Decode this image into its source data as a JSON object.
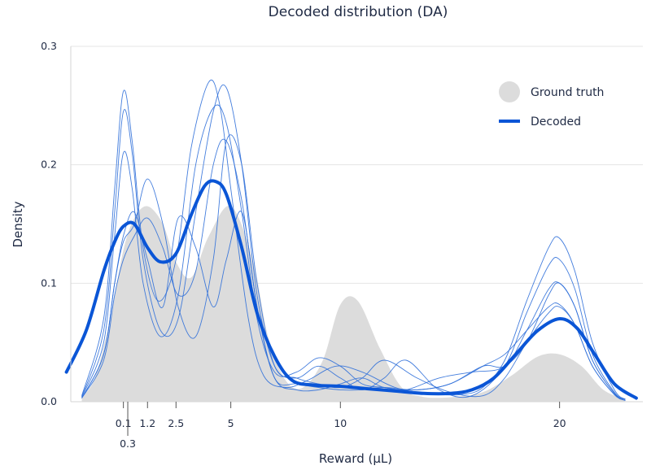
{
  "chart_data": {
    "type": "area",
    "title": "Decoded distribution (DA)",
    "xlabel": "Reward (μL)",
    "ylabel": "Density",
    "ylim": [
      0,
      0.3
    ],
    "yticks": [
      "0.0",
      "0.1",
      "0.2",
      "0.3"
    ],
    "xticks": [
      "0.1",
      "0.3",
      "1.2",
      "2.5",
      "5",
      "10",
      "20"
    ],
    "grid": "horizontal",
    "legend": {
      "position": "top-right",
      "entries": [
        "Ground truth",
        "Decoded"
      ]
    },
    "colors": {
      "ground_truth": "#dcdcdc",
      "decoded": "#0a55d6",
      "samples": "#2f6fd9"
    },
    "series": [
      {
        "name": "Ground truth",
        "x": [
          -1.8,
          -1.2,
          -0.5,
          0.1,
          0.6,
          1.2,
          1.9,
          2.5,
          3.2,
          4.0,
          5.0,
          6.0,
          6.7,
          7.5,
          8.3,
          9.2,
          10.0,
          10.8,
          11.8,
          12.8,
          13.8,
          15.2,
          16.5,
          17.8,
          19.0,
          20.0,
          21.0,
          22.0,
          23.0
        ],
        "values": [
          0.004,
          0.02,
          0.07,
          0.128,
          0.155,
          0.165,
          0.15,
          0.118,
          0.105,
          0.14,
          0.165,
          0.12,
          0.055,
          0.018,
          0.012,
          0.035,
          0.082,
          0.085,
          0.045,
          0.012,
          0.004,
          0.004,
          0.008,
          0.022,
          0.038,
          0.04,
          0.03,
          0.01,
          0.002
        ]
      },
      {
        "name": "Decoded",
        "x": [
          -2.5,
          -1.6,
          -0.8,
          -0.3,
          0.1,
          0.6,
          1.2,
          1.8,
          2.5,
          3.2,
          3.8,
          4.3,
          4.8,
          5.5,
          6.2,
          7.0,
          7.8,
          8.8,
          10.0,
          11.2,
          12.5,
          13.8,
          15.0,
          16.0,
          17.0,
          18.0,
          19.0,
          20.0,
          20.8,
          21.6,
          22.5,
          23.5
        ],
        "values": [
          0.025,
          0.06,
          0.11,
          0.135,
          0.148,
          0.15,
          0.13,
          0.118,
          0.125,
          0.158,
          0.182,
          0.186,
          0.175,
          0.13,
          0.075,
          0.038,
          0.018,
          0.014,
          0.013,
          0.011,
          0.009,
          0.007,
          0.007,
          0.01,
          0.02,
          0.04,
          0.06,
          0.07,
          0.062,
          0.04,
          0.015,
          0.003
        ]
      }
    ],
    "samples": [
      {
        "x": [
          -1.8,
          -0.8,
          -0.3,
          0.1,
          0.5,
          1.0,
          1.7,
          2.5,
          3.2,
          4.0,
          4.5,
          5.0,
          5.8,
          6.5,
          7.5,
          8.5,
          9.8,
          11.0,
          12.5,
          14.0,
          15.5,
          16.5,
          17.5,
          18.5,
          19.5,
          20.0,
          20.7,
          21.5,
          22.5,
          23.0
        ],
        "y": [
          0.005,
          0.07,
          0.18,
          0.262,
          0.22,
          0.13,
          0.085,
          0.12,
          0.215,
          0.27,
          0.25,
          0.18,
          0.07,
          0.022,
          0.012,
          0.018,
          0.03,
          0.025,
          0.012,
          0.007,
          0.006,
          0.012,
          0.035,
          0.085,
          0.13,
          0.138,
          0.11,
          0.05,
          0.01,
          0.002
        ]
      },
      {
        "x": [
          -1.8,
          -0.8,
          -0.3,
          0.1,
          0.5,
          1.0,
          1.8,
          2.6,
          3.4,
          4.2,
          4.8,
          5.5,
          6.2,
          7.0,
          8.0,
          9.0,
          10.0,
          11.0,
          12.0,
          13.0,
          14.5,
          16.0,
          17.5,
          18.5,
          19.5,
          20.0,
          20.7,
          21.5,
          22.5,
          23.0
        ],
        "y": [
          0.004,
          0.06,
          0.16,
          0.245,
          0.21,
          0.12,
          0.06,
          0.07,
          0.16,
          0.245,
          0.265,
          0.2,
          0.09,
          0.03,
          0.02,
          0.03,
          0.02,
          0.01,
          0.02,
          0.035,
          0.01,
          0.005,
          0.03,
          0.075,
          0.115,
          0.12,
          0.095,
          0.04,
          0.008,
          0.002
        ]
      },
      {
        "x": [
          -1.8,
          -0.8,
          -0.3,
          0.1,
          0.5,
          1.0,
          1.8,
          2.6,
          3.4,
          4.2,
          4.8,
          5.5,
          6.2,
          7.0,
          8.0,
          9.0,
          10.0,
          11.0,
          12.0,
          13.0,
          14.5,
          16.0,
          17.5,
          18.5,
          19.5,
          20.0,
          20.7,
          21.5,
          22.5,
          23.0
        ],
        "y": [
          0.004,
          0.05,
          0.14,
          0.21,
          0.18,
          0.1,
          0.055,
          0.09,
          0.2,
          0.248,
          0.235,
          0.16,
          0.07,
          0.025,
          0.025,
          0.037,
          0.03,
          0.015,
          0.012,
          0.01,
          0.02,
          0.025,
          0.03,
          0.06,
          0.095,
          0.1,
          0.08,
          0.035,
          0.007,
          0.002
        ]
      },
      {
        "x": [
          -1.8,
          -0.8,
          -0.3,
          0.1,
          0.6,
          1.2,
          1.9,
          2.6,
          3.4,
          4.2,
          4.8,
          5.5,
          6.2,
          7.0,
          8.0,
          9.0,
          10.0,
          11.0,
          12.0,
          13.5,
          15.0,
          16.5,
          17.5,
          18.5,
          19.5,
          20.0,
          20.7,
          21.5,
          22.5,
          23.0
        ],
        "y": [
          0.003,
          0.04,
          0.1,
          0.135,
          0.15,
          0.188,
          0.15,
          0.08,
          0.055,
          0.12,
          0.22,
          0.2,
          0.1,
          0.03,
          0.02,
          0.015,
          0.012,
          0.02,
          0.035,
          0.02,
          0.008,
          0.005,
          0.02,
          0.05,
          0.075,
          0.08,
          0.065,
          0.03,
          0.006,
          0.001
        ]
      },
      {
        "x": [
          -1.8,
          -0.8,
          -0.3,
          0.1,
          0.6,
          1.2,
          1.9,
          2.6,
          3.4,
          4.2,
          4.8,
          5.5,
          6.2,
          7.0,
          8.0,
          9.0,
          10.0,
          11.0,
          12.0,
          13.5,
          15.0,
          16.5,
          17.5,
          18.5,
          19.5,
          20.0,
          20.7,
          21.5,
          22.5,
          23.0
        ],
        "y": [
          0.003,
          0.035,
          0.09,
          0.12,
          0.14,
          0.155,
          0.13,
          0.09,
          0.11,
          0.2,
          0.22,
          0.17,
          0.08,
          0.02,
          0.015,
          0.012,
          0.01,
          0.01,
          0.012,
          0.01,
          0.015,
          0.03,
          0.04,
          0.06,
          0.08,
          0.082,
          0.065,
          0.03,
          0.006,
          0.001
        ]
      },
      {
        "x": [
          -1.8,
          -0.8,
          -0.3,
          0.1,
          0.6,
          1.2,
          1.9,
          2.6,
          3.4,
          4.2,
          4.8,
          5.5,
          6.2,
          7.0,
          8.0,
          9.0,
          10.0,
          11.0,
          12.0,
          13.5,
          15.0,
          16.5,
          17.5,
          18.5,
          19.5,
          20.0,
          20.7,
          21.5,
          22.5,
          23.0
        ],
        "y": [
          0.003,
          0.04,
          0.1,
          0.14,
          0.16,
          0.12,
          0.08,
          0.155,
          0.13,
          0.08,
          0.12,
          0.16,
          0.08,
          0.02,
          0.01,
          0.01,
          0.015,
          0.02,
          0.012,
          0.01,
          0.015,
          0.03,
          0.03,
          0.05,
          0.09,
          0.1,
          0.08,
          0.035,
          0.007,
          0.002
        ]
      }
    ]
  }
}
